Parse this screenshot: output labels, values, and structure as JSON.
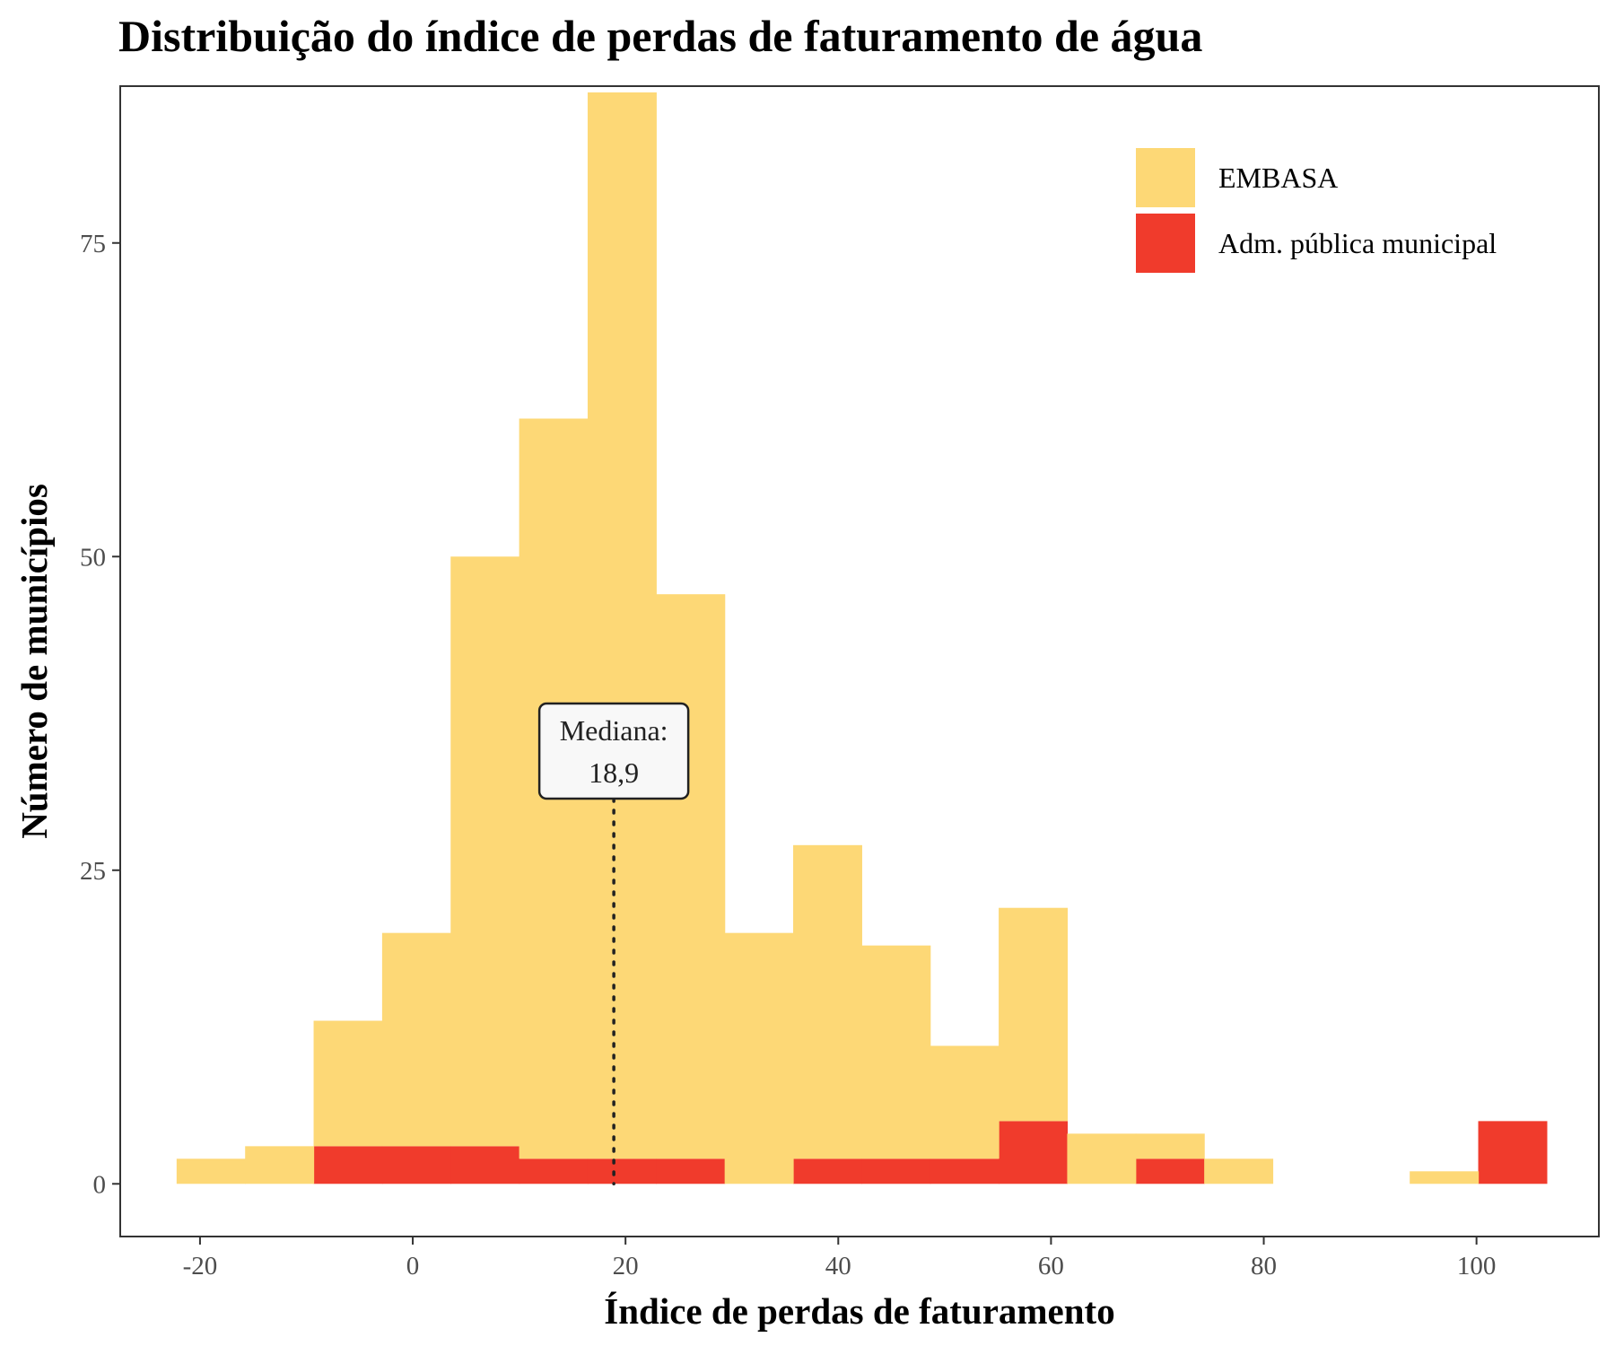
{
  "chart_data": {
    "type": "bar",
    "title": "Distribuição do índice de perdas de faturamento de água",
    "xlabel": "Índice de perdas de faturamento",
    "ylabel": "Número de municípios",
    "xlim": [
      -27.5,
      111.5
    ],
    "ylim": [
      -4.2,
      87.5
    ],
    "x_ticks": [
      -20,
      0,
      20,
      40,
      60,
      80,
      100
    ],
    "x_tick_labels": [
      "-20",
      "0",
      "20",
      "40",
      "60",
      "80",
      "100"
    ],
    "y_ticks": [
      0,
      25,
      50,
      75
    ],
    "y_tick_labels": [
      "0",
      "25",
      "50",
      "75"
    ],
    "bin_edges": [
      -22.2,
      -15.76,
      -9.32,
      -2.88,
      3.56,
      10.0,
      16.44,
      22.88,
      29.32,
      35.76,
      42.2,
      48.64,
      55.08,
      61.52,
      67.96,
      74.4,
      80.84,
      87.28,
      93.72,
      100.16,
      106.6
    ],
    "stacked": true,
    "series": [
      {
        "name": "Adm. pública municipal",
        "color": "#f03b2c",
        "values": [
          0,
          0,
          3,
          3,
          3,
          2,
          2,
          2,
          0,
          2,
          2,
          2,
          5,
          0,
          2,
          0,
          0,
          0,
          0,
          5
        ]
      },
      {
        "name": "EMBASA",
        "color": "#fdd876",
        "values": [
          2,
          3,
          10,
          17,
          47,
          59,
          85,
          45,
          20,
          25,
          17,
          9,
          17,
          4,
          2,
          2,
          0,
          0,
          1,
          0
        ]
      }
    ],
    "legend": {
      "position": "top-right",
      "order": [
        "EMBASA",
        "Adm. pública municipal"
      ]
    },
    "grid": false,
    "annotation": {
      "line1": "Mediana:",
      "line2": "18,9",
      "x": 18.9,
      "y": 34.5
    }
  }
}
